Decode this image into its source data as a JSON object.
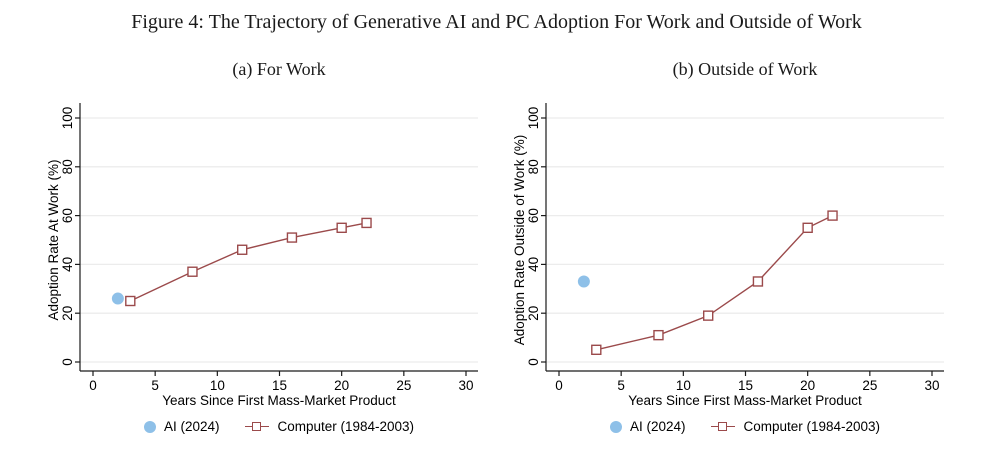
{
  "figure": {
    "title": "Figure 4: The Trajectory of Generative AI and PC Adoption For Work and Outside of Work"
  },
  "colors": {
    "ai": "#8ec0e8",
    "computer": "#9b4a4b",
    "grid": "#ececec",
    "axis": "#1a1a1a",
    "text": "#000000",
    "background": "#ffffff"
  },
  "chart_data": [
    {
      "type": "scatter",
      "subtitle": "(a) For Work",
      "xlabel": "Years Since First Mass-Market Product",
      "ylabel": "Adoption Rate At Work (%)",
      "xlim": [
        0,
        30
      ],
      "ylim": [
        0,
        100
      ],
      "xticks": [
        0,
        5,
        10,
        15,
        20,
        25,
        30
      ],
      "yticks": [
        0,
        20,
        40,
        60,
        80,
        100
      ],
      "grid": "horizontal",
      "legend_position": "bottom",
      "series": [
        {
          "name": "AI (2024)",
          "type": "scatter",
          "marker": "circle",
          "color": "#8ec0e8",
          "points": [
            [
              2,
              26
            ]
          ]
        },
        {
          "name": "Computer (1984-2003)",
          "type": "line+marker",
          "marker": "square-open",
          "color": "#9b4a4b",
          "points": [
            [
              3,
              25
            ],
            [
              8,
              37
            ],
            [
              12,
              46
            ],
            [
              16,
              51
            ],
            [
              20,
              55
            ],
            [
              22,
              57
            ]
          ]
        }
      ]
    },
    {
      "type": "scatter",
      "subtitle": "(b) Outside of Work",
      "xlabel": "Years Since First Mass-Market Product",
      "ylabel": "Adoption Rate Outside of Work (%)",
      "xlim": [
        0,
        30
      ],
      "ylim": [
        0,
        100
      ],
      "xticks": [
        0,
        5,
        10,
        15,
        20,
        25,
        30
      ],
      "yticks": [
        0,
        20,
        40,
        60,
        80,
        100
      ],
      "grid": "horizontal",
      "legend_position": "bottom",
      "series": [
        {
          "name": "AI (2024)",
          "type": "scatter",
          "marker": "circle",
          "color": "#8ec0e8",
          "points": [
            [
              2,
              33
            ]
          ]
        },
        {
          "name": "Computer (1984-2003)",
          "type": "line+marker",
          "marker": "square-open",
          "color": "#9b4a4b",
          "points": [
            [
              3,
              5
            ],
            [
              8,
              11
            ],
            [
              12,
              19
            ],
            [
              16,
              33
            ],
            [
              20,
              55
            ],
            [
              22,
              60
            ]
          ]
        }
      ]
    }
  ]
}
